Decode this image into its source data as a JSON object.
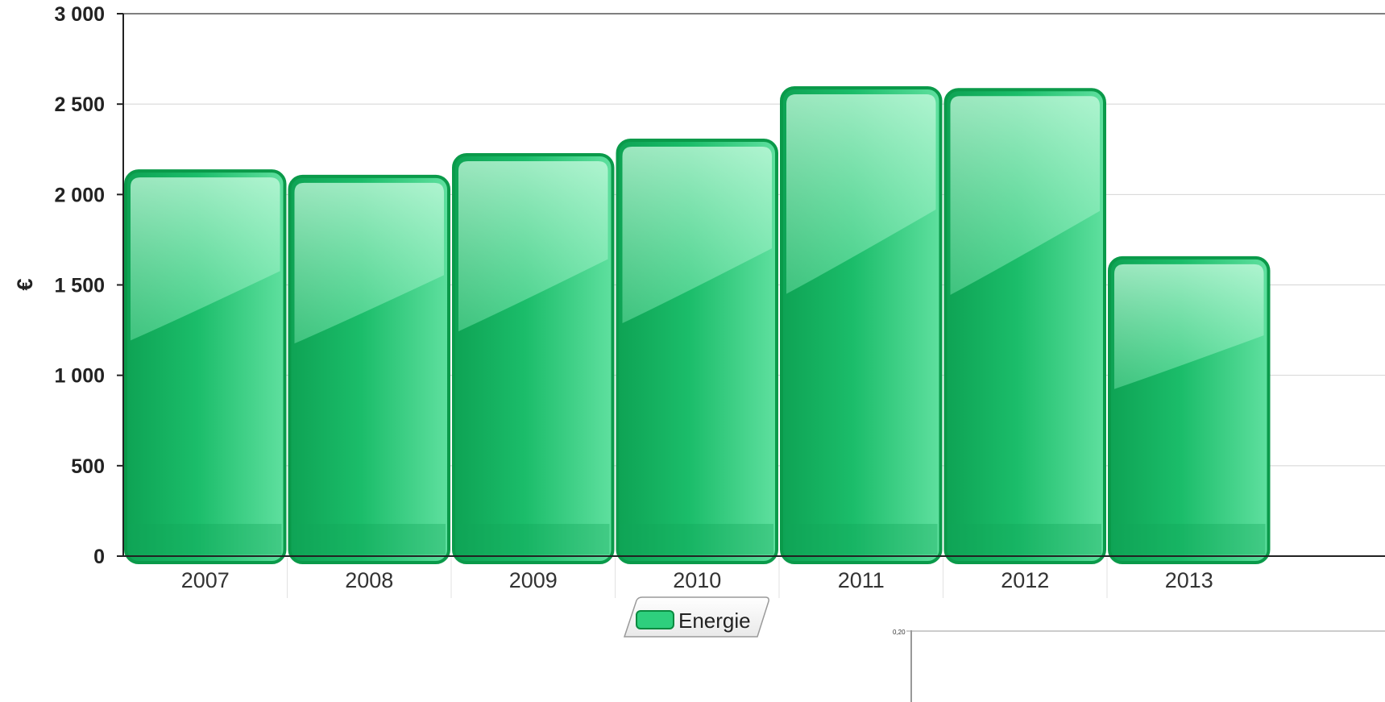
{
  "chart_data": {
    "type": "bar",
    "title": "",
    "xlabel": "",
    "ylabel": "€",
    "categories": [
      "2007",
      "2008",
      "2009",
      "2010",
      "2011",
      "2012",
      "2013"
    ],
    "series": [
      {
        "name": "Energie",
        "values": [
          2130,
          2100,
          2220,
          2300,
          2590,
          2580,
          1650
        ]
      }
    ],
    "ylim": [
      0,
      3000
    ],
    "yticks": [
      0,
      500,
      1000,
      1500,
      2000,
      2500,
      3000
    ],
    "ytick_labels": [
      "0",
      "500",
      "1 000",
      "1 500",
      "2 000",
      "2 500",
      "3 000"
    ],
    "grid": true,
    "legend_position": "bottom-center",
    "colors": {
      "bar_base": "#17b865",
      "bar_light": "#b8f7d5",
      "bar_border": "#0a9a4a",
      "grid": "#d4d4d4",
      "axis": "#222222"
    }
  },
  "inset_chart": {
    "tick_label": "0,20"
  }
}
